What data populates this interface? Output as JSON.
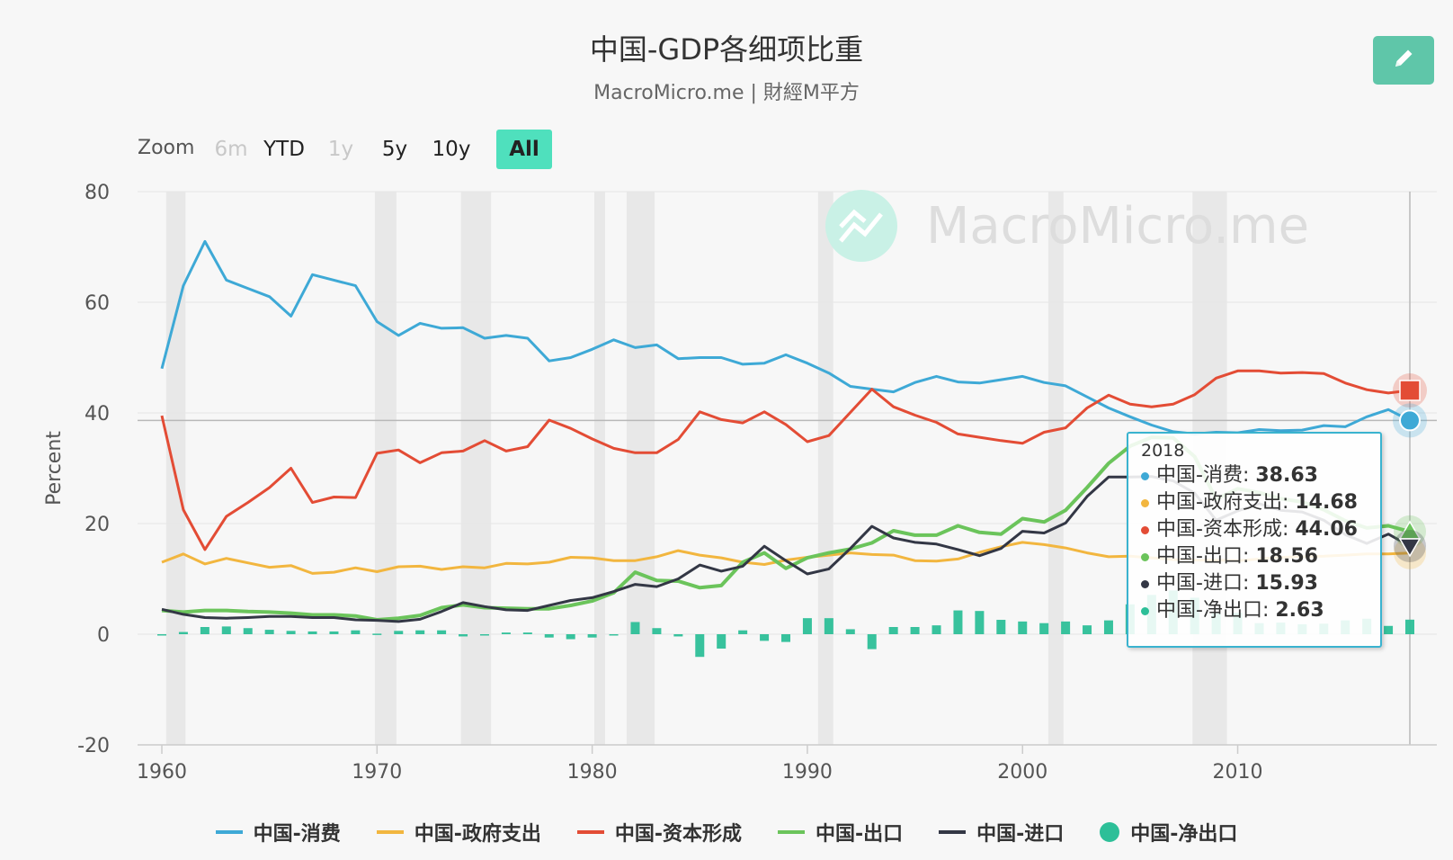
{
  "header": {
    "title": "中国-GDP各细项比重",
    "subtitle": "MacroMicro.me | 財經M平方"
  },
  "watermark": "MacroMicro.me",
  "zoom": {
    "label": "Zoom",
    "buttons": [
      {
        "label": "6m",
        "state": "disabled"
      },
      {
        "label": "YTD",
        "state": "normal"
      },
      {
        "label": "1y",
        "state": "disabled"
      },
      {
        "label": "5y",
        "state": "normal"
      },
      {
        "label": "10y",
        "state": "normal"
      },
      {
        "label": "All",
        "state": "active"
      }
    ]
  },
  "tooltip": {
    "year": "2018",
    "rows": [
      {
        "label": "中国-消费: ",
        "value": "38.63",
        "color": "#3ea9d6"
      },
      {
        "label": "中国-政府支出: ",
        "value": "14.68",
        "color": "#f2b63f"
      },
      {
        "label": "中国-资本形成: ",
        "value": "44.06",
        "color": "#e34c35"
      },
      {
        "label": "中国-出口: ",
        "value": "18.56",
        "color": "#6bc45b"
      },
      {
        "label": "中国-进口: ",
        "value": "15.93",
        "color": "#333745"
      },
      {
        "label": "中国-净出口: ",
        "value": "2.63",
        "color": "#2dbf98"
      }
    ]
  },
  "colors": {
    "consumption": "#3ea9d6",
    "government": "#f2b63f",
    "capital": "#e34c35",
    "exports": "#6bc45b",
    "imports": "#333745",
    "net_exports": "#2dbf98",
    "accent": "#4fe0bd",
    "recession_band": "#e8e8e8"
  },
  "chart_data": {
    "type": "line",
    "ylabel": "Percent",
    "xlabel": "",
    "xlim": [
      1960,
      2018
    ],
    "ylim": [
      -20,
      80
    ],
    "yticks": [
      -20,
      0,
      20,
      40,
      60,
      80
    ],
    "xticks": [
      1960,
      1970,
      1980,
      1990,
      2000,
      2010
    ],
    "recessions": [
      [
        1960.2,
        1961.1
      ],
      [
        1969.9,
        1970.9
      ],
      [
        1973.9,
        1975.3
      ],
      [
        1980.1,
        1980.6
      ],
      [
        1981.6,
        1982.9
      ],
      [
        1990.5,
        1991.2
      ],
      [
        2001.2,
        2001.9
      ],
      [
        2007.9,
        2009.5
      ]
    ],
    "x": [
      1960,
      1961,
      1962,
      1963,
      1964,
      1965,
      1966,
      1967,
      1968,
      1969,
      1970,
      1971,
      1972,
      1973,
      1974,
      1975,
      1976,
      1977,
      1978,
      1979,
      1980,
      1981,
      1982,
      1983,
      1984,
      1985,
      1986,
      1987,
      1988,
      1989,
      1990,
      1991,
      1992,
      1993,
      1994,
      1995,
      1996,
      1997,
      1998,
      1999,
      2000,
      2001,
      2002,
      2003,
      2004,
      2005,
      2006,
      2007,
      2008,
      2009,
      2010,
      2011,
      2012,
      2013,
      2014,
      2015,
      2016,
      2017,
      2018
    ],
    "series": [
      {
        "name": "中国-消费",
        "type": "line",
        "values": [
          48,
          63,
          71,
          64,
          62.5,
          61,
          57.5,
          65,
          64,
          63,
          56.5,
          54,
          56.2,
          55.3,
          55.4,
          53.5,
          54,
          53.5,
          49.4,
          50,
          51.5,
          53.2,
          51.8,
          52.3,
          49.8,
          50,
          50,
          48.8,
          49,
          50.5,
          49,
          47.2,
          44.8,
          44.3,
          43.8,
          45.5,
          46.6,
          45.6,
          45.4,
          46,
          46.6,
          45.5,
          44.9,
          42.9,
          40.9,
          39.3,
          37.8,
          36.6,
          36.2,
          36.5,
          36.4,
          37,
          36.8,
          36.9,
          37.7,
          37.5,
          39.3,
          40.6,
          38.63
        ]
      },
      {
        "name": "中国-政府支出",
        "type": "line",
        "values": [
          13,
          14.5,
          12.7,
          13.7,
          12.9,
          12.1,
          12.4,
          11,
          11.2,
          12,
          11.3,
          12.2,
          12.3,
          11.7,
          12.2,
          12,
          12.8,
          12.7,
          13,
          13.9,
          13.8,
          13.3,
          13.3,
          14,
          15.1,
          14.3,
          13.8,
          13,
          12.6,
          13.4,
          13.9,
          14.3,
          14.7,
          14.4,
          14.3,
          13.3,
          13.2,
          13.6,
          14.8,
          15.8,
          16.6,
          16.2,
          15.6,
          14.7,
          14,
          14.1,
          13.8,
          13.5,
          13.4,
          13.4,
          13.3,
          13.6,
          13.9,
          14,
          14.1,
          14.3,
          14.5,
          14.5,
          14.68
        ]
      },
      {
        "name": "中国-资本形成",
        "type": "line",
        "values": [
          39.5,
          22.5,
          15.3,
          21.3,
          23.8,
          26.5,
          30,
          23.8,
          24.8,
          24.7,
          32.7,
          33.3,
          31,
          32.8,
          33.1,
          35,
          33.1,
          33.9,
          38.7,
          37.2,
          35.3,
          33.6,
          32.8,
          32.8,
          35.2,
          40.2,
          38.8,
          38.2,
          40.2,
          37.9,
          34.8,
          35.9,
          40.1,
          44.3,
          41.1,
          39.6,
          38.3,
          36.2,
          35.6,
          35,
          34.5,
          36.5,
          37.3,
          40.9,
          43.2,
          41.6,
          41.1,
          41.6,
          43.3,
          46.3,
          47.6,
          47.6,
          47.2,
          47.3,
          47.1,
          45.4,
          44.2,
          43.6,
          44.06
        ]
      },
      {
        "name": "中国-出口",
        "type": "line",
        "values": [
          4.3,
          4,
          4.3,
          4.3,
          4.1,
          4,
          3.8,
          3.5,
          3.5,
          3.3,
          2.6,
          2.9,
          3.4,
          4.8,
          5.3,
          4.8,
          4.7,
          4.6,
          4.6,
          5.2,
          6,
          7.5,
          11.2,
          9.7,
          9.6,
          8.4,
          8.8,
          13,
          14.7,
          11.9,
          13.8,
          14.7,
          15.4,
          16.5,
          18.7,
          17.9,
          17.9,
          19.6,
          18.4,
          18.1,
          20.9,
          20.3,
          22.4,
          26.5,
          30.9,
          34,
          35.6,
          35.5,
          32.1,
          24.4,
          26.3,
          25.6,
          24.5,
          23.9,
          22.5,
          20.5,
          19.2,
          19.6,
          18.56
        ]
      },
      {
        "name": "中国-进口",
        "type": "line",
        "values": [
          4.5,
          3.6,
          3,
          2.9,
          3,
          3.2,
          3.2,
          3,
          3,
          2.6,
          2.5,
          2.3,
          2.7,
          4.1,
          5.7,
          5,
          4.4,
          4.3,
          5.2,
          6.1,
          6.6,
          7.7,
          9,
          8.6,
          10,
          12.5,
          11.4,
          12.3,
          15.9,
          13.3,
          10.9,
          11.8,
          15.5,
          19.5,
          17.4,
          16.6,
          16.3,
          15.3,
          14.2,
          15.5,
          18.6,
          18.3,
          20.1,
          24.9,
          28.4,
          28.4,
          28.5,
          27.7,
          25.5,
          20.6,
          22.3,
          23.6,
          22.4,
          22.1,
          20.6,
          18,
          16.4,
          18.1,
          15.93
        ]
      },
      {
        "name": "中国-净出口",
        "type": "column",
        "values": [
          -0.2,
          0.4,
          1.3,
          1.4,
          1.1,
          0.8,
          0.6,
          0.5,
          0.5,
          0.7,
          0.1,
          0.6,
          0.7,
          0.7,
          -0.4,
          -0.2,
          0.3,
          0.3,
          -0.6,
          -0.9,
          -0.6,
          -0.2,
          2.2,
          1.1,
          -0.4,
          -4.1,
          -2.6,
          0.7,
          -1.2,
          -1.4,
          2.9,
          2.9,
          0.9,
          -2.7,
          1.3,
          1.3,
          1.6,
          4.3,
          4.2,
          2.6,
          2.3,
          2,
          2.3,
          1.6,
          2.5,
          5.4,
          7.1,
          7.9,
          6.6,
          3.8,
          3.9,
          2,
          2.1,
          1.8,
          1.9,
          2.5,
          2.8,
          1.5,
          2.63
        ]
      }
    ]
  },
  "legend": [
    {
      "label": "中国-消费",
      "key": "consumption",
      "shape": "line"
    },
    {
      "label": "中国-政府支出",
      "key": "government",
      "shape": "line"
    },
    {
      "label": "中国-资本形成",
      "key": "capital",
      "shape": "line"
    },
    {
      "label": "中国-出口",
      "key": "exports",
      "shape": "line"
    },
    {
      "label": "中国-进口",
      "key": "imports",
      "shape": "line"
    },
    {
      "label": "中国-净出口",
      "key": "net_exports",
      "shape": "dot"
    }
  ]
}
